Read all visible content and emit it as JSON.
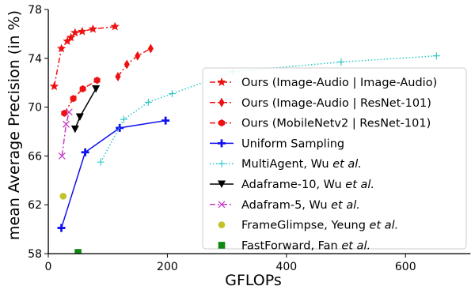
{
  "chart_data": {
    "type": "line",
    "xlabel": "GFLOPs",
    "ylabel": "mean Average Precision (in %)",
    "xlim": [
      0,
      710
    ],
    "ylim": [
      58,
      78
    ],
    "xticks": [
      0,
      200,
      400,
      600
    ],
    "yticks": [
      58,
      62,
      66,
      70,
      74,
      78
    ],
    "grid": false,
    "legend_position": "bottom-right",
    "series": [
      {
        "name": "Ours (Image-Audio | Image-Audio)",
        "legend_parts": [
          {
            "text": "Ours (Image-Audio | Image-Audio)",
            "italic": false
          }
        ],
        "color": "#ee1111",
        "linestyle": "dashdot",
        "marker": "star",
        "x": [
          10,
          22,
          32,
          38,
          45,
          57,
          75,
          112
        ],
        "y": [
          71.7,
          74.8,
          75.4,
          75.7,
          76.1,
          76.2,
          76.4,
          76.6
        ]
      },
      {
        "name": "Ours (Image-Audio | ResNet-101)",
        "legend_parts": [
          {
            "text": "Ours (Image-Audio | ResNet-101)",
            "italic": false
          }
        ],
        "color": "#ee1111",
        "linestyle": "dashdot",
        "marker": "diamond",
        "x": [
          117,
          132,
          150,
          172
        ],
        "y": [
          72.5,
          73.5,
          74.2,
          74.8
        ]
      },
      {
        "name": "Ours (MobileNetv2 | ResNet-101)",
        "legend_parts": [
          {
            "text": "Ours (MobileNetv2 | ResNet-101)",
            "italic": false
          }
        ],
        "color": "#ee1111",
        "linestyle": "dashdot",
        "marker": "hexagon",
        "x": [
          27,
          42,
          58,
          82
        ],
        "y": [
          69.5,
          70.7,
          71.5,
          72.2
        ]
      },
      {
        "name": "Uniform Sampling",
        "legend_parts": [
          {
            "text": "Uniform Sampling",
            "italic": false
          }
        ],
        "color": "#1111ee",
        "linestyle": "solid",
        "marker": "plus",
        "x": [
          22,
          62,
          120,
          197
        ],
        "y": [
          60.1,
          66.3,
          68.3,
          68.9
        ]
      },
      {
        "name": "MultiAgent, Wu et al.",
        "legend_parts": [
          {
            "text": "MultiAgent, Wu ",
            "italic": false
          },
          {
            "text": "et al.",
            "italic": true
          }
        ],
        "color": "#2cc6c6",
        "linestyle": "dotted",
        "marker": "thinplus",
        "x": [
          88,
          127,
          168,
          208,
          310,
          492,
          652
        ],
        "y": [
          65.5,
          69.0,
          70.4,
          71.1,
          72.9,
          73.7,
          74.2
        ]
      },
      {
        "name": "Adaframe-10, Wu et al.",
        "legend_parts": [
          {
            "text": "Adaframe-10, Wu ",
            "italic": false
          },
          {
            "text": "et al.",
            "italic": true
          }
        ],
        "color": "#000000",
        "linestyle": "solid",
        "marker": "triangle-down",
        "x": [
          45,
          53,
          80
        ],
        "y": [
          68.2,
          69.2,
          71.5
        ]
      },
      {
        "name": "Adafram-5, Wu et al.",
        "legend_parts": [
          {
            "text": "Adafram-5, Wu ",
            "italic": false
          },
          {
            "text": "et al.",
            "italic": true
          }
        ],
        "color": "#c43cc4",
        "linestyle": "dashdot",
        "marker": "x",
        "x": [
          23,
          30,
          35
        ],
        "y": [
          66.0,
          68.6,
          69.6
        ]
      },
      {
        "name": "FrameGlimpse, Yeung et al.",
        "legend_parts": [
          {
            "text": "FrameGlimpse, Yeung ",
            "italic": false
          },
          {
            "text": "et al.",
            "italic": true
          }
        ],
        "color": "#c2c22a",
        "linestyle": "none",
        "marker": "circle",
        "x": [
          25
        ],
        "y": [
          62.7
        ]
      },
      {
        "name": "FastForward, Fan et al.",
        "legend_parts": [
          {
            "text": "FastForward, Fan ",
            "italic": false
          },
          {
            "text": "et al.",
            "italic": true
          }
        ],
        "color": "#118811",
        "linestyle": "none",
        "marker": "square",
        "x": [
          50
        ],
        "y": [
          58.1
        ]
      }
    ]
  }
}
